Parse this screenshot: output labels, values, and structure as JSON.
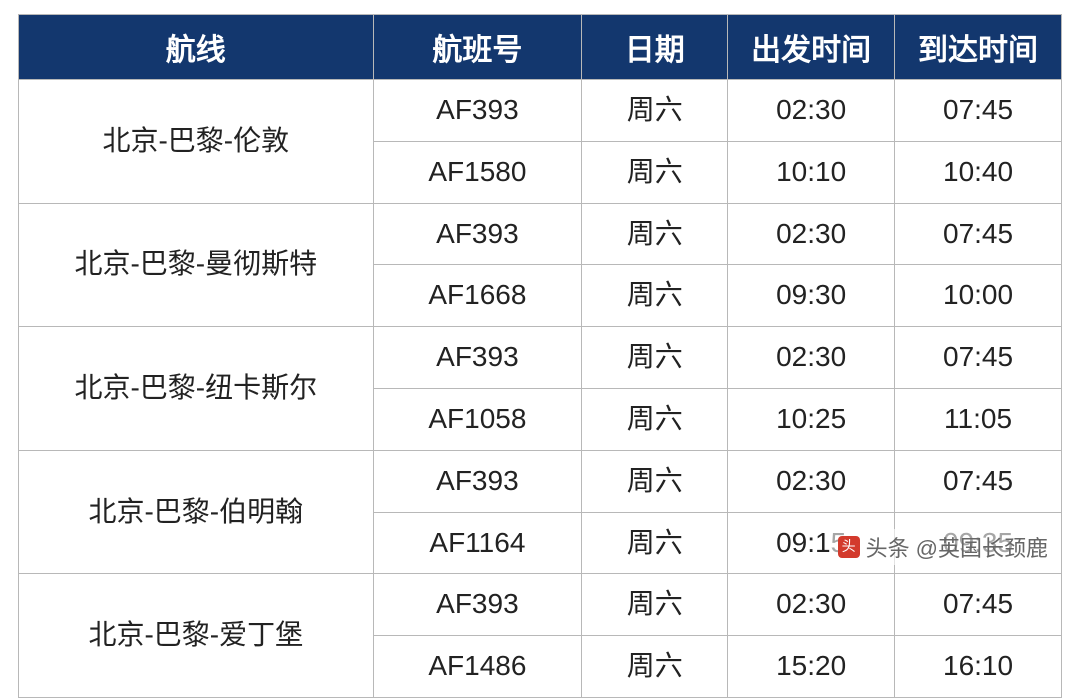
{
  "table": {
    "type": "table",
    "header_bg": "#13376e",
    "header_fg": "#ffffff",
    "cell_fg": "#222222",
    "border_color": "#b8b8b8",
    "header_fontsize": 30,
    "cell_fontsize": 28,
    "col_widths_pct": [
      34,
      20,
      14,
      16,
      16
    ],
    "columns": [
      "航线",
      "航班号",
      "日期",
      "出发时间",
      "到达时间"
    ],
    "groups": [
      {
        "route": "北京-巴黎-伦敦",
        "flights": [
          {
            "flight_no": "AF393",
            "day": "周六",
            "dep": "02:30",
            "arr": "07:45"
          },
          {
            "flight_no": "AF1580",
            "day": "周六",
            "dep": "10:10",
            "arr": "10:40"
          }
        ]
      },
      {
        "route": "北京-巴黎-曼彻斯特",
        "flights": [
          {
            "flight_no": "AF393",
            "day": "周六",
            "dep": "02:30",
            "arr": "07:45"
          },
          {
            "flight_no": "AF1668",
            "day": "周六",
            "dep": "09:30",
            "arr": "10:00"
          }
        ]
      },
      {
        "route": "北京-巴黎-纽卡斯尔",
        "flights": [
          {
            "flight_no": "AF393",
            "day": "周六",
            "dep": "02:30",
            "arr": "07:45"
          },
          {
            "flight_no": "AF1058",
            "day": "周六",
            "dep": "10:25",
            "arr": "11:05"
          }
        ]
      },
      {
        "route": "北京-巴黎-伯明翰",
        "flights": [
          {
            "flight_no": "AF393",
            "day": "周六",
            "dep": "02:30",
            "arr": "07:45"
          },
          {
            "flight_no": "AF1164",
            "day": "周六",
            "dep": "09:15",
            "arr": "09:35"
          }
        ]
      },
      {
        "route": "北京-巴黎-爱丁堡",
        "flights": [
          {
            "flight_no": "AF393",
            "day": "周六",
            "dep": "02:30",
            "arr": "07:45"
          },
          {
            "flight_no": "AF1486",
            "day": "周六",
            "dep": "15:20",
            "arr": "16:10"
          }
        ]
      }
    ]
  },
  "watermark": {
    "prefix": "头条",
    "handle": "@英国长颈鹿",
    "color": "#666666",
    "icon_color": "#d33a2c"
  }
}
